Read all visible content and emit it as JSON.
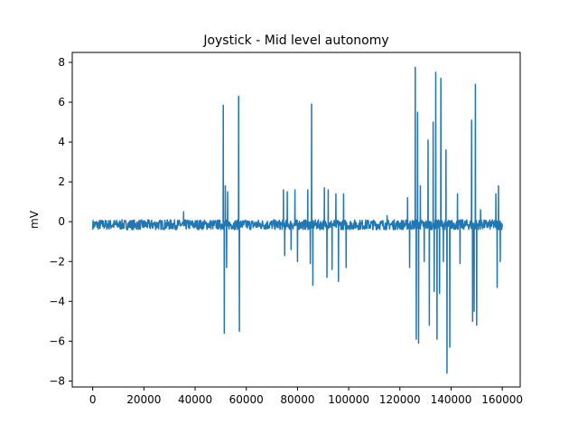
{
  "chart_data": {
    "type": "line",
    "title": "Joystick - Mid level autonomy",
    "xlabel": "",
    "ylabel": "mV",
    "xlim": [
      -8000,
      167000
    ],
    "ylim": [
      -8.3,
      8.5
    ],
    "xticks": [
      0,
      20000,
      40000,
      60000,
      80000,
      100000,
      120000,
      140000,
      160000
    ],
    "xtick_labels": [
      "0",
      "20000",
      "40000",
      "60000",
      "80000",
      "100000",
      "120000",
      "140000",
      "160000"
    ],
    "yticks": [
      -8,
      -6,
      -4,
      -2,
      0,
      2,
      4,
      6,
      8
    ],
    "ytick_labels": [
      "−8",
      "−6",
      "−4",
      "−2",
      "0",
      "2",
      "4",
      "6",
      "8"
    ],
    "grid": false,
    "series": [
      {
        "color": "#1f77b4",
        "x_range": [
          0,
          160000
        ],
        "baseline": -0.2,
        "noise_band": [
          -0.4,
          0.1
        ],
        "spikes": [
          {
            "x": 35500,
            "y": 0.5
          },
          {
            "x": 51000,
            "y": 5.85
          },
          {
            "x": 51400,
            "y": -5.6
          },
          {
            "x": 51800,
            "y": 1.8
          },
          {
            "x": 52300,
            "y": -2.3
          },
          {
            "x": 52700,
            "y": 1.5
          },
          {
            "x": 57000,
            "y": 6.3
          },
          {
            "x": 57300,
            "y": -5.5
          },
          {
            "x": 74500,
            "y": 1.6
          },
          {
            "x": 75000,
            "y": -1.7
          },
          {
            "x": 76000,
            "y": 1.5
          },
          {
            "x": 77500,
            "y": -1.4
          },
          {
            "x": 79000,
            "y": 1.6
          },
          {
            "x": 80000,
            "y": -2.0
          },
          {
            "x": 84000,
            "y": 1.6
          },
          {
            "x": 85000,
            "y": -2.1
          },
          {
            "x": 85500,
            "y": 5.9
          },
          {
            "x": 86000,
            "y": -3.2
          },
          {
            "x": 90500,
            "y": 1.7
          },
          {
            "x": 91500,
            "y": -2.8
          },
          {
            "x": 92000,
            "y": 1.6
          },
          {
            "x": 93500,
            "y": -2.4
          },
          {
            "x": 95000,
            "y": 1.4
          },
          {
            "x": 96000,
            "y": -3.0
          },
          {
            "x": 98000,
            "y": 1.4
          },
          {
            "x": 99000,
            "y": -2.3
          },
          {
            "x": 115000,
            "y": 0.3
          },
          {
            "x": 123000,
            "y": 1.2
          },
          {
            "x": 123800,
            "y": -2.3
          },
          {
            "x": 126000,
            "y": 7.75
          },
          {
            "x": 126400,
            "y": -5.9
          },
          {
            "x": 126900,
            "y": 5.5
          },
          {
            "x": 127300,
            "y": -6.1
          },
          {
            "x": 128000,
            "y": 1.8
          },
          {
            "x": 129500,
            "y": -2.0
          },
          {
            "x": 131000,
            "y": 4.1
          },
          {
            "x": 131500,
            "y": -5.2
          },
          {
            "x": 133000,
            "y": 5.0
          },
          {
            "x": 133400,
            "y": -3.5
          },
          {
            "x": 134000,
            "y": 7.5
          },
          {
            "x": 134500,
            "y": -5.9
          },
          {
            "x": 135500,
            "y": -3.6
          },
          {
            "x": 136000,
            "y": 7.2
          },
          {
            "x": 137000,
            "y": -2.0
          },
          {
            "x": 138000,
            "y": 3.6
          },
          {
            "x": 138400,
            "y": -7.6
          },
          {
            "x": 139500,
            "y": -6.3
          },
          {
            "x": 142500,
            "y": 1.4
          },
          {
            "x": 143500,
            "y": -2.1
          },
          {
            "x": 148000,
            "y": 5.1
          },
          {
            "x": 148400,
            "y": -5.0
          },
          {
            "x": 149000,
            "y": -4.5
          },
          {
            "x": 149500,
            "y": 6.9
          },
          {
            "x": 150000,
            "y": -5.2
          },
          {
            "x": 151500,
            "y": 0.6
          },
          {
            "x": 157500,
            "y": 1.4
          },
          {
            "x": 158000,
            "y": -3.3
          },
          {
            "x": 158500,
            "y": 1.8
          },
          {
            "x": 159200,
            "y": -2.0
          }
        ]
      }
    ]
  }
}
